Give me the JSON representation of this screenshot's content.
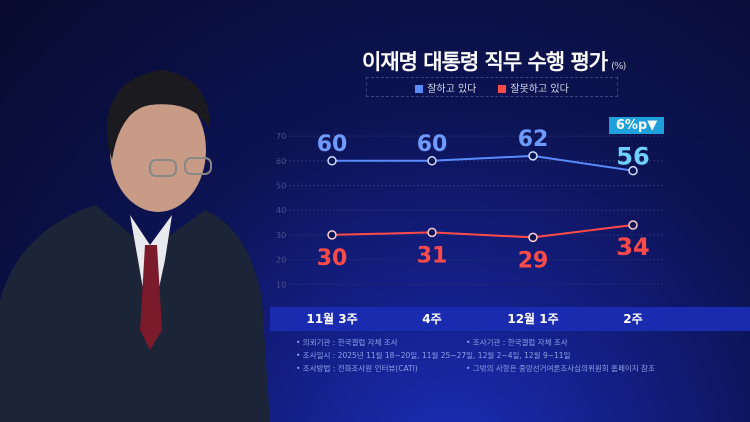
{
  "chart_data": {
    "type": "line",
    "title": "이재명 대통령 직무 수행 평가",
    "unit": "(%)",
    "categories": [
      "11월 3주",
      "4주",
      "12월 1주",
      "2주"
    ],
    "series": [
      {
        "name": "잘하고 있다",
        "values": [
          60,
          60,
          62,
          56
        ],
        "color": "#5b8cff"
      },
      {
        "name": "잘못하고 있다",
        "values": [
          30,
          31,
          29,
          34
        ],
        "color": "#ff4a4a"
      }
    ],
    "yticks": [
      10,
      20,
      30,
      40,
      50,
      60,
      70
    ],
    "ylim": [
      0,
      70
    ],
    "grid": true,
    "legend": "top",
    "annotation": "6%p▼"
  },
  "notes": [
    [
      "• 의뢰기관 : 한국갤럽 자체 조사",
      "• 조사기관 : 한국갤럽 자체 조사"
    ],
    [
      "• 조사일시 : 2025년 11월 18~20일, 11월 25~27일, 12월 2~4일, 12월 9~11일",
      ""
    ],
    [
      "• 조사방법 : 전화조사원 인터뷰(CATI)",
      "• 그밖의 사항은 중앙선거여론조사심의위원회 홈페이지 참조"
    ]
  ]
}
